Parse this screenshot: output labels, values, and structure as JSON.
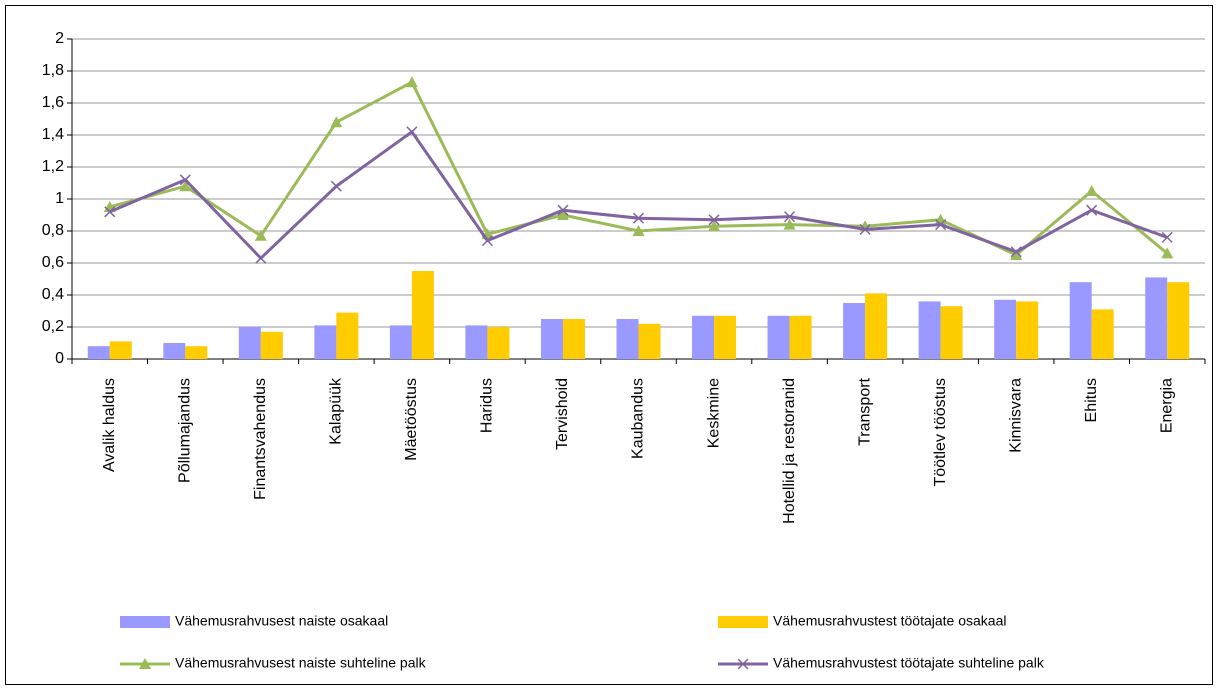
{
  "chart_data": {
    "type": "bar",
    "categories": [
      "Avalik haldus",
      "Põllumajandus",
      "Finantsvahendus",
      "Kalapüük",
      "Mäetööstus",
      "Haridus",
      "Tervishoid",
      "Kaubandus",
      "Keskmine",
      "Hotellid ja restoranid",
      "Transport",
      "Töötlev tööstus",
      "Kinnisvara",
      "Ehitus",
      "Energia"
    ],
    "series": [
      {
        "name": "Vähemusrahvusest naiste osakaal",
        "type": "bar",
        "color": "#9999ff",
        "values": [
          0.08,
          0.1,
          0.2,
          0.21,
          0.21,
          0.21,
          0.25,
          0.25,
          0.27,
          0.27,
          0.35,
          0.36,
          0.37,
          0.48,
          0.51
        ]
      },
      {
        "name": "Vähemusrahvustest töötajate osakaal",
        "type": "bar",
        "color": "#ffcc00",
        "values": [
          0.11,
          0.08,
          0.17,
          0.29,
          0.55,
          0.2,
          0.25,
          0.22,
          0.27,
          0.27,
          0.41,
          0.33,
          0.36,
          0.31,
          0.48
        ]
      },
      {
        "name": "Vähemusrahvusest naiste suhteline palk",
        "type": "line",
        "marker": "triangle",
        "color": "#9bbb59",
        "values": [
          0.95,
          1.08,
          0.77,
          1.48,
          1.73,
          0.78,
          0.9,
          0.8,
          0.83,
          0.84,
          0.83,
          0.87,
          0.65,
          1.05,
          0.66
        ]
      },
      {
        "name": "Vähemusrahvustest töötajate suhteline palk",
        "type": "line",
        "marker": "x",
        "color": "#8064a2",
        "values": [
          0.92,
          1.12,
          0.63,
          1.08,
          1.42,
          0.74,
          0.93,
          0.88,
          0.87,
          0.89,
          0.81,
          0.84,
          0.67,
          0.93,
          0.76
        ]
      }
    ],
    "ylim": [
      0,
      2
    ],
    "yticks": [
      0,
      {
        "value": 0.2,
        "label": "0,2"
      },
      {
        "value": 0.4,
        "label": "0,4"
      },
      {
        "value": 0.6,
        "label": "0,6"
      },
      {
        "value": 0.8,
        "label": "0,8"
      },
      1,
      {
        "value": 1.2,
        "label": "1,2"
      },
      {
        "value": 1.4,
        "label": "1,4"
      },
      {
        "value": 1.6,
        "label": "1,6"
      },
      {
        "value": 1.8,
        "label": "1,8"
      },
      2
    ],
    "grid": true,
    "legend": "bottom"
  }
}
